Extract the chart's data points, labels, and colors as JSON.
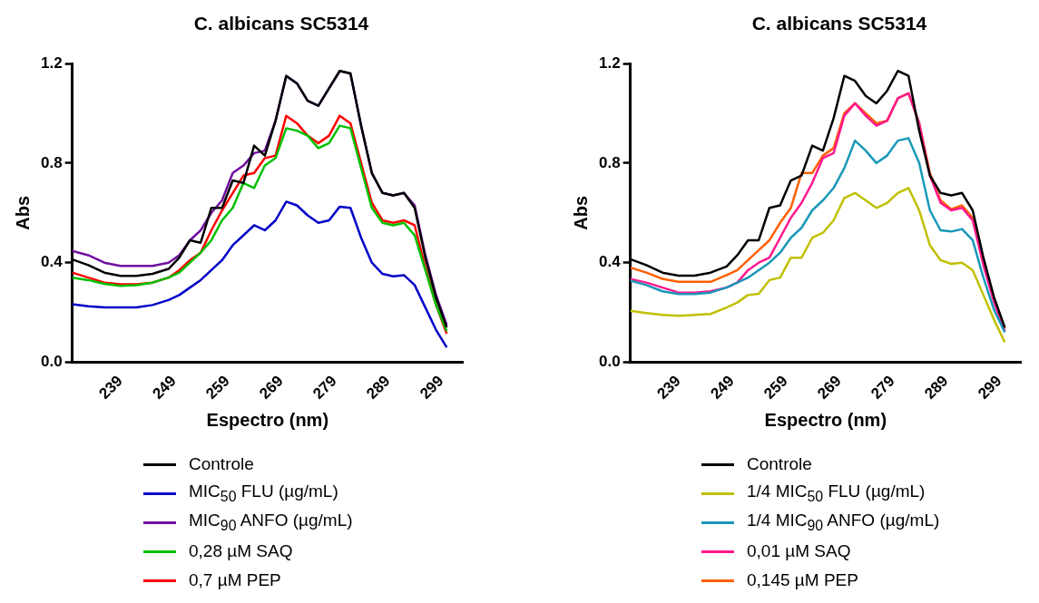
{
  "chart_data": [
    {
      "type": "line",
      "title": "C. albicans SC5314",
      "xlabel": "Espectro (nm)",
      "ylabel": "Abs",
      "x": [
        230,
        233,
        236,
        239,
        242,
        245,
        248,
        250,
        252,
        254,
        256,
        258,
        260,
        262,
        264,
        266,
        268,
        270,
        272,
        274,
        276,
        278,
        280,
        282,
        284,
        286,
        288,
        290,
        292,
        294,
        296,
        298,
        300
      ],
      "xlim": [
        230,
        303
      ],
      "xticks": [
        239,
        249,
        259,
        269,
        279,
        289,
        299
      ],
      "ylim": [
        0,
        1.2
      ],
      "yticks": [
        {
          "value": 0,
          "label": "0.0"
        },
        0.4,
        0.8,
        1.2
      ],
      "grid": false,
      "legend": "bottom",
      "marker": "none",
      "line_style": "solid",
      "series": [
        {
          "name": "Controle",
          "color": "#000000",
          "values": [
            0.413,
            0.39,
            0.36,
            0.347,
            0.347,
            0.355,
            0.375,
            0.42,
            0.49,
            0.48,
            0.62,
            0.62,
            0.73,
            0.72,
            0.87,
            0.83,
            0.97,
            1.15,
            1.12,
            1.05,
            1.03,
            1.1,
            1.17,
            1.16,
            0.95,
            0.76,
            0.68,
            0.67,
            0.68,
            0.62,
            0.42,
            0.26,
            0.14
          ]
        },
        {
          "name": "MIC$_{50}$ FLU (µg/mL)",
          "color": "#0000c8",
          "values": [
            0.233,
            0.225,
            0.22,
            0.22,
            0.22,
            0.23,
            0.25,
            0.27,
            0.3,
            0.33,
            0.37,
            0.41,
            0.47,
            0.51,
            0.55,
            0.53,
            0.57,
            0.645,
            0.63,
            0.59,
            0.56,
            0.57,
            0.625,
            0.62,
            0.5,
            0.4,
            0.355,
            0.345,
            0.35,
            0.31,
            0.22,
            0.13,
            0.06
          ]
        },
        {
          "name": "MIC$_{90}$ ANFO (µg/mL)",
          "color": "#7010a0",
          "values": [
            0.447,
            0.43,
            0.4,
            0.387,
            0.387,
            0.387,
            0.4,
            0.43,
            0.49,
            0.53,
            0.6,
            0.65,
            0.76,
            0.79,
            0.84,
            0.85,
            0.97,
            1.15,
            1.12,
            1.05,
            1.03,
            1.1,
            1.17,
            1.16,
            0.95,
            0.76,
            0.68,
            0.67,
            0.68,
            0.63,
            0.43,
            0.27,
            0.15
          ]
        },
        {
          "name": "0,28 µM SAQ",
          "color": "#00c000",
          "values": [
            0.34,
            0.33,
            0.315,
            0.307,
            0.31,
            0.32,
            0.34,
            0.36,
            0.4,
            0.44,
            0.49,
            0.57,
            0.62,
            0.72,
            0.7,
            0.79,
            0.82,
            0.94,
            0.93,
            0.91,
            0.86,
            0.88,
            0.95,
            0.94,
            0.78,
            0.62,
            0.56,
            0.55,
            0.56,
            0.51,
            0.37,
            0.23,
            0.125
          ]
        },
        {
          "name": "0,7 µM PEP",
          "color": "#ff0000",
          "values": [
            0.36,
            0.34,
            0.32,
            0.313,
            0.313,
            0.32,
            0.34,
            0.37,
            0.41,
            0.44,
            0.53,
            0.61,
            0.68,
            0.75,
            0.76,
            0.82,
            0.83,
            0.99,
            0.96,
            0.91,
            0.88,
            0.91,
            0.99,
            0.96,
            0.8,
            0.64,
            0.57,
            0.56,
            0.57,
            0.55,
            0.38,
            0.23,
            0.115
          ]
        }
      ]
    },
    {
      "type": "line",
      "title": "C. albicans SC5314",
      "xlabel": "Espectro (nm)",
      "ylabel": "Abs",
      "x": [
        230,
        233,
        236,
        239,
        242,
        245,
        248,
        250,
        252,
        254,
        256,
        258,
        260,
        262,
        264,
        266,
        268,
        270,
        272,
        274,
        276,
        278,
        280,
        282,
        284,
        286,
        288,
        290,
        292,
        294,
        296,
        298,
        300
      ],
      "xlim": [
        230,
        303
      ],
      "xticks": [
        239,
        249,
        259,
        269,
        279,
        289,
        299
      ],
      "ylim": [
        0,
        1.2
      ],
      "yticks": [
        {
          "value": 0,
          "label": "0.0"
        },
        0.4,
        0.8,
        1.2
      ],
      "grid": false,
      "legend": "bottom",
      "marker": "none",
      "line_style": "solid",
      "series": [
        {
          "name": "Controle",
          "color": "#000000",
          "values": [
            0.414,
            0.39,
            0.36,
            0.348,
            0.348,
            0.36,
            0.385,
            0.43,
            0.49,
            0.49,
            0.62,
            0.63,
            0.73,
            0.75,
            0.87,
            0.85,
            0.98,
            1.15,
            1.13,
            1.07,
            1.04,
            1.09,
            1.17,
            1.15,
            0.93,
            0.75,
            0.68,
            0.67,
            0.68,
            0.61,
            0.42,
            0.26,
            0.14
          ]
        },
        {
          "name": "1/4 MIC$_{50}$ FLU (µg/mL)",
          "color": "#c0c000",
          "values": [
            0.207,
            0.198,
            0.19,
            0.187,
            0.19,
            0.194,
            0.22,
            0.24,
            0.27,
            0.275,
            0.33,
            0.34,
            0.42,
            0.42,
            0.5,
            0.52,
            0.57,
            0.66,
            0.68,
            0.65,
            0.62,
            0.64,
            0.68,
            0.7,
            0.61,
            0.47,
            0.41,
            0.395,
            0.4,
            0.37,
            0.27,
            0.17,
            0.08
          ]
        },
        {
          "name": "1/4 MIC$_{90}$ ANFO (µg/mL)",
          "color": "#1898b8",
          "values": [
            0.328,
            0.31,
            0.285,
            0.274,
            0.274,
            0.28,
            0.3,
            0.32,
            0.34,
            0.37,
            0.4,
            0.44,
            0.5,
            0.54,
            0.61,
            0.65,
            0.7,
            0.78,
            0.89,
            0.85,
            0.8,
            0.83,
            0.89,
            0.9,
            0.8,
            0.61,
            0.53,
            0.525,
            0.535,
            0.49,
            0.34,
            0.21,
            0.12
          ]
        },
        {
          "name": "0,01 µM SAQ",
          "color": "#ff1890",
          "values": [
            0.334,
            0.32,
            0.3,
            0.28,
            0.28,
            0.285,
            0.3,
            0.32,
            0.37,
            0.4,
            0.42,
            0.5,
            0.58,
            0.64,
            0.72,
            0.82,
            0.84,
            0.99,
            1.04,
            0.99,
            0.95,
            0.97,
            1.06,
            1.08,
            0.96,
            0.75,
            0.64,
            0.61,
            0.62,
            0.57,
            0.39,
            0.24,
            0.125
          ]
        },
        {
          "name": "0,145 µM PEP",
          "color": "#ff6000",
          "values": [
            0.38,
            0.36,
            0.335,
            0.323,
            0.323,
            0.323,
            0.35,
            0.37,
            0.41,
            0.45,
            0.49,
            0.56,
            0.62,
            0.76,
            0.76,
            0.83,
            0.86,
            1.0,
            1.04,
            1.0,
            0.96,
            0.97,
            1.06,
            1.08,
            0.96,
            0.76,
            0.65,
            0.615,
            0.63,
            0.58,
            0.4,
            0.25,
            0.135
          ]
        }
      ]
    }
  ]
}
